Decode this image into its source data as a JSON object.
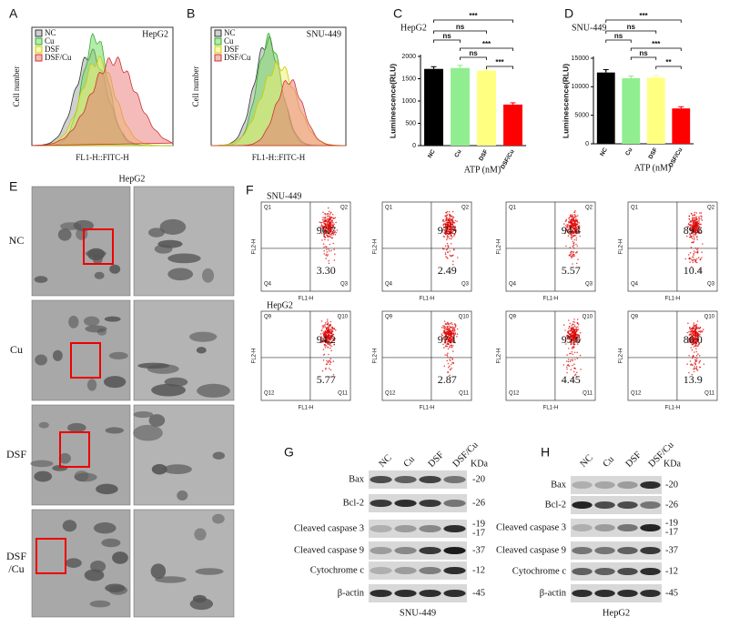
{
  "panels": {
    "A": {
      "label": "A",
      "title": "HepG2",
      "legend": [
        "NC",
        "Cu",
        "DSF",
        "DSF/Cu"
      ],
      "y_label": "Cell number",
      "x_label": "FL1-H::FITC-H"
    },
    "B": {
      "label": "B",
      "title": "SNU-449",
      "legend": [
        "NC",
        "Cu",
        "DSF",
        "DSF/Cu"
      ],
      "y_label": "Cell number",
      "x_label": "FL1-H::FITC-H"
    },
    "E": {
      "label": "E",
      "title": "HepG2",
      "rows": [
        [
          "NC"
        ],
        [
          "Cu"
        ],
        [
          "DSF"
        ],
        [
          "DSF",
          "/Cu"
        ]
      ]
    },
    "F": {
      "label": "F",
      "x_label": "FL1-H",
      "y_label": "FL2-H",
      "rows": [
        {
          "title": "SNU-449",
          "quadrants": [
            "Q1",
            "Q2",
            "Q3",
            "Q4"
          ],
          "upper": [
            "96.7",
            "97.5",
            "94.4",
            "89.6"
          ],
          "lower": [
            "3.30",
            "2.49",
            "5.57",
            "10.4"
          ]
        },
        {
          "title": "HepG2",
          "quadrants": [
            "Q9",
            "Q10",
            "Q11",
            "Q12"
          ],
          "upper": [
            "94.2",
            "97.1",
            "95.6",
            "86.0"
          ],
          "lower": [
            "5.77",
            "2.87",
            "4.45",
            "13.9"
          ]
        }
      ]
    },
    "G": {
      "label": "G",
      "lanes": [
        "NC",
        "Cu",
        "DSF",
        "DSF/Cu"
      ],
      "unit": "KDa",
      "proteins": [
        "Bax",
        "Bcl-2",
        "Cleaved caspase 3",
        "Cleaved caspase 9",
        "Cytochrome c",
        "β-actin"
      ],
      "kda": [
        [
          "-20"
        ],
        [
          "-26"
        ],
        [
          "-19",
          "-17"
        ],
        [
          "-37"
        ],
        [
          "-12"
        ],
        [
          "-45"
        ]
      ],
      "caption": "SNU-449"
    },
    "H": {
      "label": "H",
      "lanes": [
        "NC",
        "Cu",
        "DSF",
        "DSF/Cu"
      ],
      "unit": "KDa",
      "proteins": [
        "Bax",
        "Bcl-2",
        "Cleaved caspase 3",
        "Cleaved caspase 9",
        "Cytochrome c",
        "β-actin"
      ],
      "kda": [
        [
          "-20"
        ],
        [
          "-26"
        ],
        [
          "-19",
          "-17"
        ],
        [
          "-37"
        ],
        [
          "-12"
        ],
        [
          "-45"
        ]
      ],
      "caption": "HepG2"
    }
  },
  "chart_data": [
    {
      "type": "bar",
      "label": "C",
      "title": "HepG2",
      "y_label": "Luminescence(RLU)",
      "x_label": "ATP (nM)",
      "categories": [
        "NC",
        "Cu",
        "DSF",
        "DSF/Cu"
      ],
      "values": [
        1720,
        1740,
        1680,
        920
      ],
      "errors": [
        50,
        60,
        40,
        40
      ],
      "colors": [
        "#000000",
        "#90ee90",
        "#ffff80",
        "#ff0000"
      ],
      "ylim": [
        0,
        2000
      ],
      "yticks": [
        0,
        500,
        1000,
        1500,
        2000
      ],
      "significance": [
        "***",
        "ns",
        "ns",
        "***",
        "ns",
        "***"
      ]
    },
    {
      "type": "bar",
      "label": "D",
      "title": "SNU-449",
      "y_label": "Luminescence(RLU)",
      "x_label": "ATP (nM)",
      "categories": [
        "NC",
        "Cu",
        "DSF",
        "DSF/Cu"
      ],
      "values": [
        12500,
        11500,
        11600,
        6200
      ],
      "errors": [
        500,
        400,
        400,
        300
      ],
      "colors": [
        "#000000",
        "#90ee90",
        "#ffff80",
        "#ff0000"
      ],
      "ylim": [
        0,
        15000
      ],
      "yticks": [
        0,
        5000,
        10000,
        15000
      ],
      "significance": [
        "***",
        "ns",
        "ns",
        "***",
        "ns",
        "**"
      ]
    }
  ]
}
